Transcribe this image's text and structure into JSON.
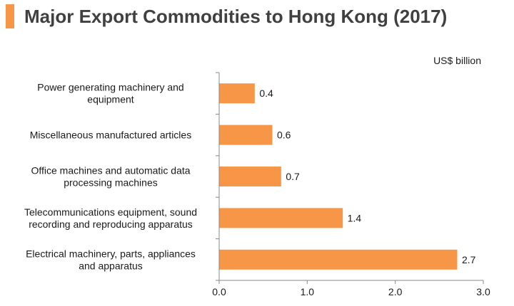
{
  "title": "Major Export Commodities to Hong Kong (2017)",
  "colors": {
    "bar": "#F79646",
    "accent": "#F79646",
    "axis": "#888888"
  },
  "chart_data": {
    "type": "bar",
    "orientation": "horizontal",
    "title": "Major Export Commodities to Hong Kong (2017)",
    "unit_label": "US$ billion",
    "categories": [
      [
        "Power generating machinery and",
        "equipment"
      ],
      [
        "Miscellaneous manufactured articles"
      ],
      [
        "Office machines and automatic data",
        "processing machines"
      ],
      [
        "Telecommunications equipment, sound",
        "recording and reproducing apparatus"
      ],
      [
        "Electrical machinery, parts, appliances",
        "and apparatus"
      ]
    ],
    "values": [
      0.4,
      0.6,
      0.7,
      1.4,
      2.7
    ],
    "value_labels": [
      "0.4",
      "0.6",
      "0.7",
      "1.4",
      "2.7"
    ],
    "xlim": [
      0,
      3
    ],
    "xticks": [
      "0.0",
      "1.0",
      "2.0",
      "3.0"
    ],
    "grid": false,
    "legend": "none"
  }
}
